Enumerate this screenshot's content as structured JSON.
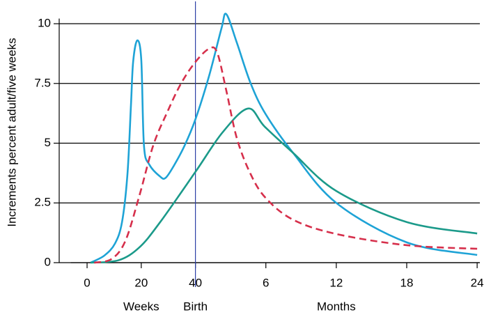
{
  "chart_data": {
    "type": "line",
    "y_label": "Increments percent adult/five weeks",
    "xlim": [
      -6,
      145
    ],
    "ylim": [
      0,
      10.8
    ],
    "xticks": [
      0,
      20,
      40,
      {
        "value": 66,
        "label": "6"
      },
      {
        "value": 92,
        "label": "12"
      },
      {
        "value": 118,
        "label": "18"
      },
      {
        "value": 144,
        "label": "24"
      }
    ],
    "yticks": [
      0,
      2.5,
      5,
      7.5,
      10
    ],
    "grid": true,
    "vline": 40,
    "annotations": [
      "Weeks",
      "Birth",
      "Months"
    ],
    "series": [
      {
        "color": "#1ea3d6",
        "dash": false,
        "x": [
          1.3,
          6.4,
          10.3,
          12.9,
          14.9,
          16.2,
          17,
          18.5,
          20,
          21,
          23,
          27,
          29,
          32,
          36,
          40,
          45,
          49.6,
          51.4,
          55.3,
          60.4,
          66,
          76,
          92,
          118,
          144
        ],
        "values": [
          0,
          0.3,
          0.8,
          1.7,
          3.7,
          6.6,
          8.4,
          9.3,
          8.5,
          4.9,
          4.1,
          3.6,
          3.55,
          4.05,
          4.9,
          6.0,
          7.8,
          9.8,
          10.4,
          9.2,
          7.5,
          6.2,
          4.6,
          2.5,
          0.85,
          0.32
        ]
      },
      {
        "color": "#1b9a8a",
        "dash": false,
        "x": [
          1.3,
          11.6,
          19.3,
          27,
          40,
          50,
          59.4,
          65.5,
          76,
          92,
          118,
          144
        ],
        "values": [
          0,
          0.1,
          0.64,
          1.7,
          3.8,
          5.45,
          6.45,
          5.7,
          4.6,
          3.0,
          1.7,
          1.22
        ]
      },
      {
        "color": "#d62f4b",
        "dash": true,
        "x": [
          2.6,
          9,
          14.1,
          19.3,
          24.4,
          29.6,
          34.7,
          40,
          45,
          48,
          51.4,
          55.3,
          60.4,
          66,
          76,
          92,
          118,
          144
        ],
        "values": [
          0,
          0.15,
          0.9,
          2.8,
          4.9,
          6.3,
          7.5,
          8.4,
          8.95,
          8.8,
          7.2,
          5.2,
          3.7,
          2.7,
          1.8,
          1.2,
          0.73,
          0.58
        ]
      }
    ]
  }
}
